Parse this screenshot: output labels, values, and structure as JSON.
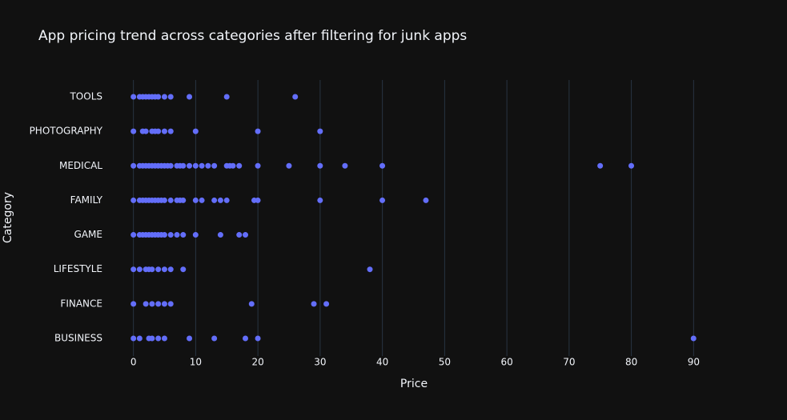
{
  "chart_data": {
    "type": "strip",
    "title": "App pricing trend across categories after filtering for junk apps",
    "xlabel": "Price",
    "ylabel": "Category",
    "color": "#636efa",
    "grid": true,
    "xlim": [
      -2.4,
      92.4
    ],
    "xticks": [
      0,
      10,
      20,
      30,
      40,
      50,
      60,
      70,
      80,
      90
    ],
    "groups": [
      {
        "category": "TOOLS",
        "values": [
          0,
          0.99,
          1.49,
          1.99,
          2.49,
          2.99,
          3.49,
          3.99,
          4.99,
          5.99,
          8.99,
          14.99,
          25.99
        ]
      },
      {
        "category": "PHOTOGRAPHY",
        "values": [
          0,
          1.49,
          1.99,
          2.99,
          3.49,
          3.99,
          4.99,
          5.99,
          9.99,
          19.99,
          29.99
        ]
      },
      {
        "category": "MEDICAL",
        "values": [
          0,
          0.99,
          1.49,
          1.99,
          2.49,
          2.99,
          3.49,
          3.99,
          4.49,
          4.99,
          5.49,
          5.99,
          6.99,
          7.49,
          7.99,
          8.99,
          9.99,
          10.99,
          11.99,
          12.99,
          14.99,
          15.49,
          15.99,
          16.99,
          19.99,
          24.99,
          29.99,
          33.99,
          39.99,
          74.99,
          79.99
        ]
      },
      {
        "category": "FAMILY",
        "values": [
          0,
          0.99,
          1.49,
          1.99,
          2.49,
          2.99,
          3.49,
          3.99,
          4.49,
          4.99,
          5.99,
          6.99,
          7.49,
          7.99,
          9.99,
          10.99,
          12.99,
          13.99,
          14.99,
          19.4,
          19.99,
          29.99,
          39.99,
          46.99
        ]
      },
      {
        "category": "GAME",
        "values": [
          0,
          0.99,
          1.49,
          1.99,
          2.49,
          2.99,
          3.49,
          3.99,
          4.49,
          4.99,
          5.99,
          6.99,
          7.99,
          9.99,
          13.99,
          16.99,
          17.99
        ]
      },
      {
        "category": "LIFESTYLE",
        "values": [
          0,
          0.99,
          1.99,
          2.49,
          2.99,
          3.99,
          4.99,
          5.99,
          7.99,
          37.99
        ]
      },
      {
        "category": "FINANCE",
        "values": [
          0,
          1.99,
          2.99,
          3.99,
          4.99,
          5.99,
          18.99,
          28.99,
          30.99
        ]
      },
      {
        "category": "BUSINESS",
        "values": [
          0,
          0.99,
          2.49,
          2.99,
          3.99,
          4.99,
          8.99,
          12.99,
          17.99,
          19.99,
          89.99
        ]
      }
    ]
  }
}
